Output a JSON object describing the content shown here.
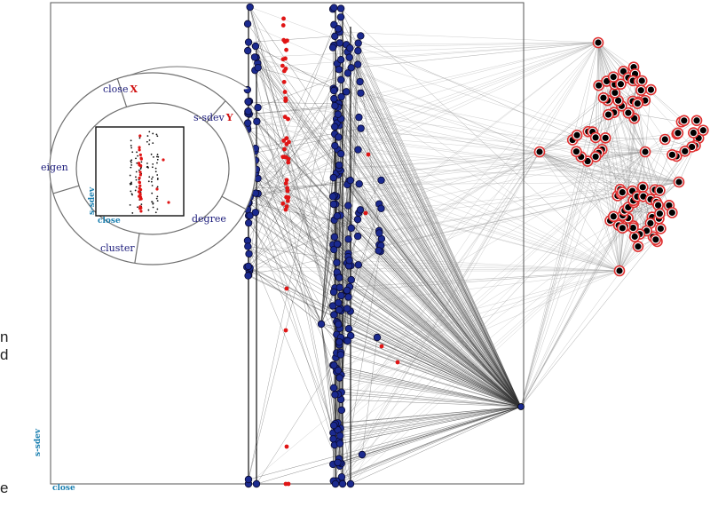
{
  "scatter_axes": {
    "x_label": "close",
    "y_label": "s-sdev"
  },
  "radial_menu": {
    "items": [
      {
        "label": "close",
        "marker": "X"
      },
      {
        "label": "s-sdev",
        "marker": "Y"
      },
      {
        "label": "degree",
        "marker": ""
      },
      {
        "label": "cluster",
        "marker": ""
      },
      {
        "label": "eigen",
        "marker": ""
      }
    ],
    "preview_x_label": "close",
    "preview_y_label": "s-sdev"
  },
  "cut_off_text": {
    "line1": "n",
    "line2": "d",
    "line3": "e"
  },
  "colors": {
    "node_blue": "#1b2a8f",
    "node_red": "#e01515",
    "edge": "#333333",
    "ring_red": "#e03030",
    "axis_label": "#1a7fb0",
    "menu_text": "#1a1a7a"
  }
}
